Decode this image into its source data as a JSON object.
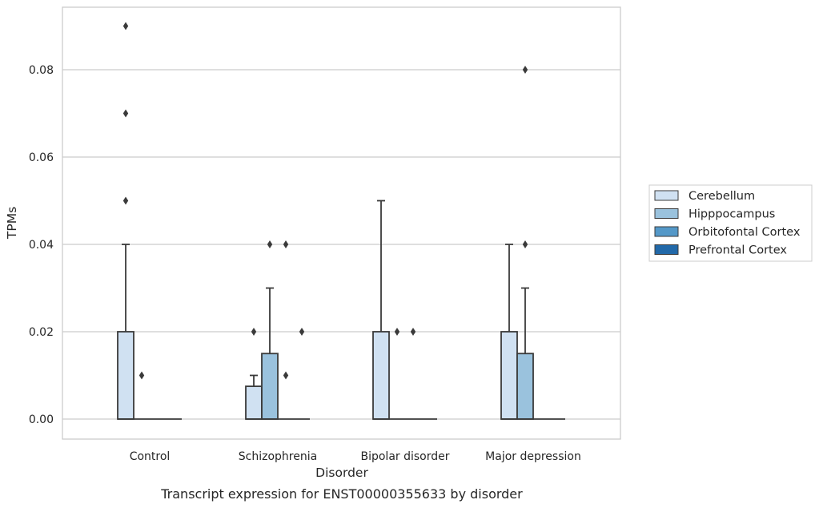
{
  "caption": "Transcript expression for ENST00000355633 by disorder",
  "chart_data": {
    "type": "box",
    "xlabel": "Disorder",
    "ylabel": "TPMs",
    "ylim": [
      -0.0045,
      0.095
    ],
    "yticks": [
      0.0,
      0.02,
      0.04,
      0.06,
      0.08
    ],
    "ytick_labels": [
      "0.00",
      "0.02",
      "0.04",
      "0.06",
      "0.08"
    ],
    "grid": "horizontal",
    "legend_position": "right",
    "categories": [
      "Control",
      "Schizophrenia",
      "Bipolar disorder",
      "Major depression"
    ],
    "series": [
      {
        "name": "Cerebellum",
        "color": "#d0e1f2",
        "boxes": [
          {
            "q1": 0,
            "median": 0,
            "q3": 0.02,
            "whislo": 0,
            "whishi": 0.04,
            "fliers": [
              0.05,
              0.07,
              0.09
            ]
          },
          {
            "q1": 0,
            "median": 0,
            "q3": 0.0075,
            "whislo": 0,
            "whishi": 0.01,
            "fliers": [
              0.02
            ]
          },
          {
            "q1": 0,
            "median": 0,
            "q3": 0.02,
            "whislo": 0,
            "whishi": 0.05,
            "fliers": []
          },
          {
            "q1": 0,
            "median": 0,
            "q3": 0.02,
            "whislo": 0,
            "whishi": 0.04,
            "fliers": []
          }
        ]
      },
      {
        "name": "Hipppocampus",
        "color": "#9ac2dd",
        "boxes": [
          {
            "q1": 0,
            "median": 0,
            "q3": 0,
            "whislo": 0,
            "whishi": 0,
            "fliers": [
              0.01
            ]
          },
          {
            "q1": 0,
            "median": 0,
            "q3": 0.015,
            "whislo": 0,
            "whishi": 0.03,
            "fliers": [
              0.04
            ]
          },
          {
            "q1": 0,
            "median": 0,
            "q3": 0,
            "whislo": 0,
            "whishi": 0,
            "fliers": [
              0.02
            ]
          },
          {
            "q1": 0,
            "median": 0,
            "q3": 0.015,
            "whislo": 0,
            "whishi": 0.03,
            "fliers": [
              0.04,
              0.08
            ]
          }
        ]
      },
      {
        "name": "Orbitofontal Cortex",
        "color": "#5498c8",
        "boxes": [
          {
            "q1": 0,
            "median": 0,
            "q3": 0,
            "whislo": 0,
            "whishi": 0,
            "fliers": []
          },
          {
            "q1": 0,
            "median": 0,
            "q3": 0,
            "whislo": 0,
            "whishi": 0,
            "fliers": [
              0.01,
              0.04
            ]
          },
          {
            "q1": 0,
            "median": 0,
            "q3": 0,
            "whislo": 0,
            "whishi": 0,
            "fliers": [
              0.02
            ]
          },
          {
            "q1": 0,
            "median": 0,
            "q3": 0,
            "whislo": 0,
            "whishi": 0,
            "fliers": []
          }
        ]
      },
      {
        "name": "Prefrontal Cortex",
        "color": "#2269a9",
        "boxes": [
          {
            "q1": 0,
            "median": 0,
            "q3": 0,
            "whislo": 0,
            "whishi": 0,
            "fliers": []
          },
          {
            "q1": 0,
            "median": 0,
            "q3": 0,
            "whislo": 0,
            "whishi": 0,
            "fliers": [
              0.02
            ]
          },
          {
            "q1": 0,
            "median": 0,
            "q3": 0,
            "whislo": 0,
            "whishi": 0,
            "fliers": []
          },
          {
            "q1": 0,
            "median": 0,
            "q3": 0,
            "whislo": 0,
            "whishi": 0,
            "fliers": []
          }
        ]
      }
    ]
  }
}
